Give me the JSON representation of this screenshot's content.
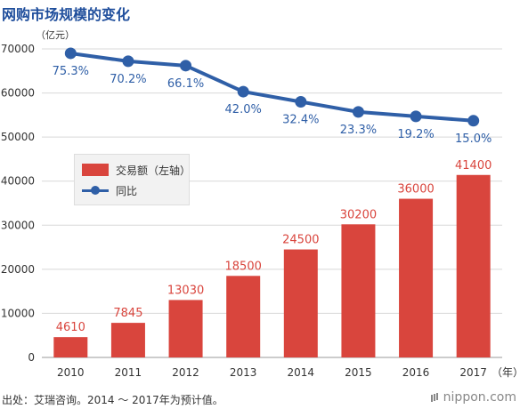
{
  "title": "网购市场规模的变化",
  "colors": {
    "bar": "#d9453d",
    "line": "#2f5fa7",
    "title": "#1f4e9c"
  },
  "chart_data": {
    "type": "bar",
    "categories": [
      "2010",
      "2011",
      "2012",
      "2013",
      "2014",
      "2015",
      "2016",
      "2017"
    ],
    "x_unit": "（年）",
    "y_unit": "（亿元）",
    "ylim": [
      0,
      70000
    ],
    "yticks": [
      0,
      10000,
      20000,
      30000,
      40000,
      50000,
      60000,
      70000
    ],
    "grid": true,
    "legend_position": "left-middle",
    "series": [
      {
        "name": "交易额（左轴）",
        "type": "bar",
        "values": [
          4610,
          7845,
          13030,
          18500,
          24500,
          30200,
          36000,
          41400
        ],
        "labels": [
          "4610",
          "7845",
          "13030",
          "18500",
          "24500",
          "30200",
          "36000",
          "41400"
        ]
      },
      {
        "name": "同比",
        "type": "line",
        "values": [
          75.3,
          70.2,
          66.1,
          42.0,
          32.4,
          23.3,
          19.2,
          15.0
        ],
        "labels": [
          "75.3%",
          "70.2%",
          "66.1%",
          "42.0%",
          "32.4%",
          "23.3%",
          "19.2%",
          "15.0%"
        ],
        "left_axis_positions": [
          69000,
          67200,
          66200,
          60300,
          58000,
          55700,
          54700,
          53700
        ]
      }
    ]
  },
  "source": "出处：艾瑞咨询。2014 ～ 2017年为预计值。",
  "brand": "nippon.com"
}
